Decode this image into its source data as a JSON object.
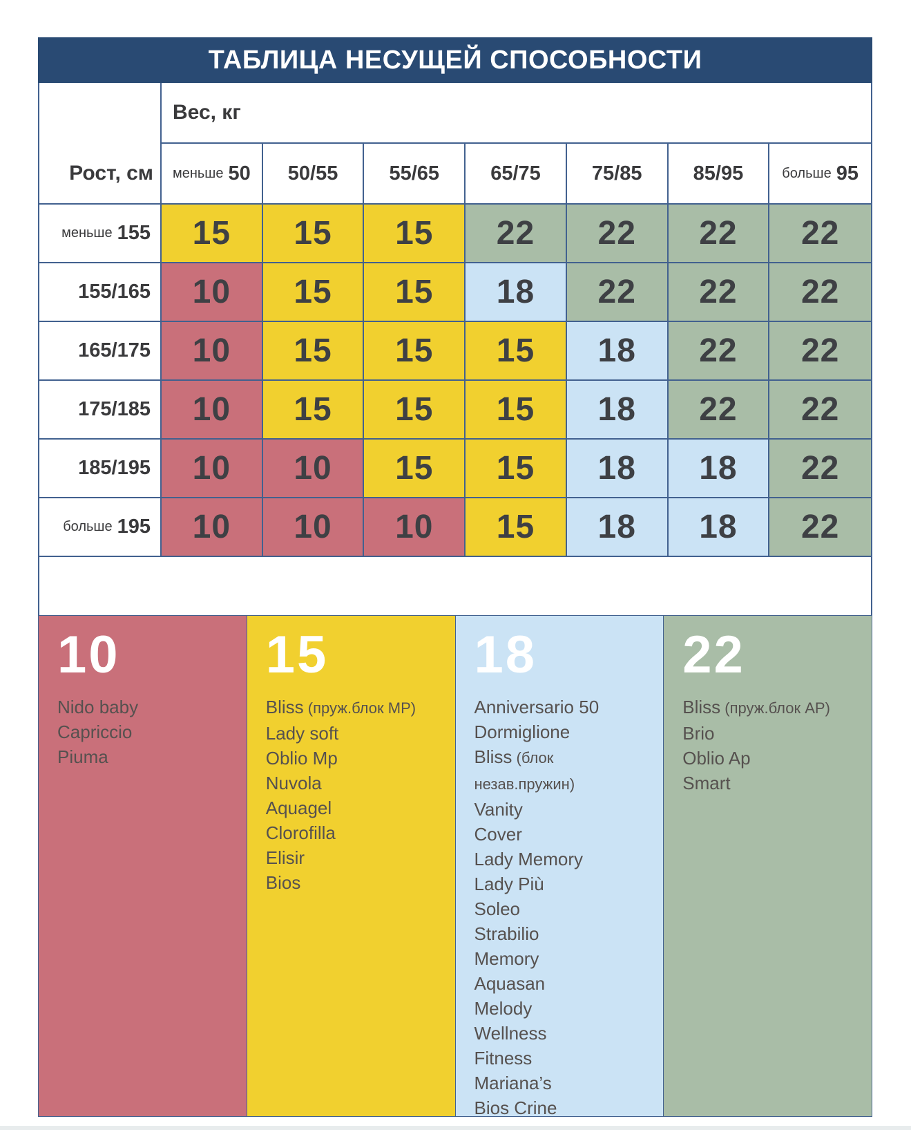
{
  "colors": {
    "title_bg": "#294a73",
    "border": "#42618f",
    "bottom_strip": "#e8eced"
  },
  "chart_data": {
    "type": "heatmap",
    "title": "ТАБЛИЦА НЕСУЩЕЙ СПОСОБНОСТИ",
    "x_axis": {
      "label": "Вес, кг",
      "categories": [
        {
          "prefix": "меньше",
          "label": "50"
        },
        {
          "label": "50/55"
        },
        {
          "label": "55/65"
        },
        {
          "label": "65/75"
        },
        {
          "label": "75/85"
        },
        {
          "label": "85/95"
        },
        {
          "prefix": "больше",
          "label": "95"
        }
      ]
    },
    "y_axis": {
      "label": "Рост, см",
      "categories": [
        {
          "prefix": "меньше",
          "label": "155"
        },
        {
          "label": "155/165"
        },
        {
          "label": "165/175"
        },
        {
          "label": "175/185"
        },
        {
          "label": "185/195"
        },
        {
          "prefix": "больше",
          "label": "195"
        }
      ]
    },
    "values": [
      [
        15,
        15,
        15,
        22,
        22,
        22,
        22
      ],
      [
        10,
        15,
        15,
        18,
        22,
        22,
        22
      ],
      [
        10,
        15,
        15,
        15,
        18,
        22,
        22
      ],
      [
        10,
        15,
        15,
        15,
        18,
        22,
        22
      ],
      [
        10,
        10,
        15,
        15,
        18,
        18,
        22
      ],
      [
        10,
        10,
        10,
        15,
        18,
        18,
        22
      ]
    ],
    "value_colors": {
      "10": "#c9707a",
      "15": "#f1d02f",
      "18": "#cbe3f5",
      "22": "#a9bda7"
    },
    "legend": [
      {
        "value": "10",
        "items": [
          {
            "name": "Nido baby"
          },
          {
            "name": "Capriccio"
          },
          {
            "name": "Piuma"
          }
        ]
      },
      {
        "value": "15",
        "items": [
          {
            "name": "Bliss",
            "note": "(пруж.блок MP)"
          },
          {
            "name": "Lady soft"
          },
          {
            "name": "Oblio Mp"
          },
          {
            "name": "Nuvola"
          },
          {
            "name": "Aquagel"
          },
          {
            "name": "Clorofilla"
          },
          {
            "name": "Elisir"
          },
          {
            "name": "Bios"
          }
        ]
      },
      {
        "value": "18",
        "items": [
          {
            "name": "Anniversario 50"
          },
          {
            "name": "Dormiglione"
          },
          {
            "name": "Bliss",
            "note": "(блок незав.пружин)"
          },
          {
            "name": "Vanity"
          },
          {
            "name": "Cover"
          },
          {
            "name": "Lady Memory"
          },
          {
            "name": "Lady Più"
          },
          {
            "name": "Soleo"
          },
          {
            "name": "Strabilio"
          },
          {
            "name": "Memory"
          },
          {
            "name": "Aquasan"
          },
          {
            "name": "Melody"
          },
          {
            "name": "Wellness"
          },
          {
            "name": "Fitness"
          },
          {
            "name": "Mariana’s"
          },
          {
            "name": "Bios Crine"
          }
        ]
      },
      {
        "value": "22",
        "items": [
          {
            "name": "Bliss",
            "note": "(пруж.блок AP)"
          },
          {
            "name": "Brio"
          },
          {
            "name": "Oblio Ap"
          },
          {
            "name": "Smart"
          }
        ]
      }
    ]
  }
}
